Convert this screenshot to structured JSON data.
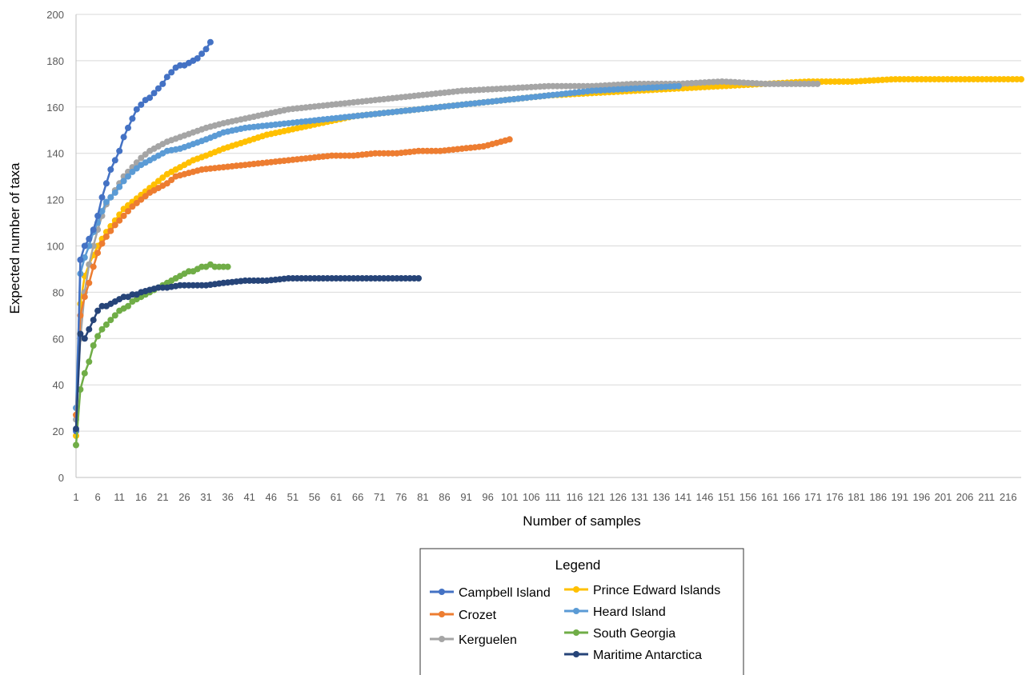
{
  "chart_data": {
    "type": "line",
    "xlabel": "Number of samples",
    "ylabel": "Expected number of taxa",
    "xlim": [
      1,
      219
    ],
    "ylim": [
      0,
      200
    ],
    "y_ticks": [
      0,
      20,
      40,
      60,
      80,
      100,
      120,
      140,
      160,
      180,
      200
    ],
    "x_tick_start": 1,
    "x_tick_step": 5,
    "x_tick_end": 216,
    "grid": "horizontal",
    "legend": {
      "title": "Legend",
      "placement": "bottom-center",
      "columns": 2
    },
    "series": [
      {
        "name": "Campbell Island",
        "color": "#4472C4",
        "n": 32,
        "points": [
          [
            1,
            20
          ],
          [
            2,
            94
          ],
          [
            3,
            100
          ],
          [
            4,
            103
          ],
          [
            5,
            107
          ],
          [
            6,
            113
          ],
          [
            7,
            121
          ],
          [
            8,
            127
          ],
          [
            9,
            133
          ],
          [
            10,
            137
          ],
          [
            11,
            141
          ],
          [
            12,
            147
          ],
          [
            13,
            151
          ],
          [
            14,
            155
          ],
          [
            15,
            159
          ],
          [
            16,
            161
          ],
          [
            17,
            163
          ],
          [
            18,
            164
          ],
          [
            19,
            166
          ],
          [
            20,
            168
          ],
          [
            21,
            170
          ],
          [
            22,
            173
          ],
          [
            23,
            175
          ],
          [
            24,
            177
          ],
          [
            25,
            178
          ],
          [
            26,
            178
          ],
          [
            27,
            179
          ],
          [
            28,
            180
          ],
          [
            29,
            181
          ],
          [
            30,
            183
          ],
          [
            31,
            185
          ],
          [
            32,
            188
          ]
        ]
      },
      {
        "name": "Crozet",
        "color": "#ED7D31",
        "n": 101,
        "points": [
          [
            1,
            27
          ],
          [
            2,
            70
          ],
          [
            3,
            78
          ],
          [
            4,
            84
          ],
          [
            5,
            91
          ],
          [
            6,
            97
          ],
          [
            7,
            101
          ],
          [
            8,
            104
          ],
          [
            10,
            109
          ],
          [
            12,
            113
          ],
          [
            14,
            117
          ],
          [
            16,
            120
          ],
          [
            18,
            123
          ],
          [
            20,
            125
          ],
          [
            22,
            127
          ],
          [
            24,
            130
          ],
          [
            26,
            131
          ],
          [
            30,
            133
          ],
          [
            35,
            134
          ],
          [
            40,
            135
          ],
          [
            45,
            136
          ],
          [
            50,
            137
          ],
          [
            55,
            138
          ],
          [
            60,
            139
          ],
          [
            65,
            139
          ],
          [
            70,
            140
          ],
          [
            75,
            140
          ],
          [
            80,
            141
          ],
          [
            85,
            141
          ],
          [
            90,
            142
          ],
          [
            95,
            143
          ],
          [
            101,
            146
          ]
        ]
      },
      {
        "name": "Kerguelen",
        "color": "#A5A5A5",
        "n": 172,
        "points": [
          [
            1,
            25
          ],
          [
            2,
            60
          ],
          [
            3,
            80
          ],
          [
            4,
            92
          ],
          [
            5,
            100
          ],
          [
            6,
            107
          ],
          [
            7,
            113
          ],
          [
            8,
            118
          ],
          [
            10,
            124
          ],
          [
            12,
            130
          ],
          [
            14,
            134
          ],
          [
            16,
            138
          ],
          [
            18,
            141
          ],
          [
            20,
            143
          ],
          [
            22,
            145
          ],
          [
            25,
            147
          ],
          [
            28,
            149
          ],
          [
            31,
            151
          ],
          [
            35,
            153
          ],
          [
            40,
            155
          ],
          [
            45,
            157
          ],
          [
            50,
            159
          ],
          [
            55,
            160
          ],
          [
            60,
            161
          ],
          [
            65,
            162
          ],
          [
            70,
            163
          ],
          [
            75,
            164
          ],
          [
            80,
            165
          ],
          [
            90,
            167
          ],
          [
            100,
            168
          ],
          [
            110,
            169
          ],
          [
            120,
            169
          ],
          [
            130,
            170
          ],
          [
            140,
            170
          ],
          [
            150,
            171
          ],
          [
            160,
            170
          ],
          [
            166,
            170
          ],
          [
            172,
            170
          ]
        ]
      },
      {
        "name": "Prince Edward Islands",
        "color": "#FFC000",
        "n": 219,
        "points": [
          [
            1,
            18
          ],
          [
            2,
            75
          ],
          [
            3,
            87
          ],
          [
            4,
            92
          ],
          [
            5,
            96
          ],
          [
            6,
            100
          ],
          [
            8,
            106
          ],
          [
            10,
            111
          ],
          [
            12,
            116
          ],
          [
            14,
            119
          ],
          [
            16,
            122
          ],
          [
            18,
            125
          ],
          [
            20,
            128
          ],
          [
            22,
            131
          ],
          [
            25,
            134
          ],
          [
            28,
            137
          ],
          [
            31,
            139
          ],
          [
            35,
            142
          ],
          [
            40,
            145
          ],
          [
            45,
            148
          ],
          [
            50,
            150
          ],
          [
            55,
            152
          ],
          [
            60,
            154
          ],
          [
            65,
            156
          ],
          [
            70,
            157
          ],
          [
            80,
            159
          ],
          [
            90,
            161
          ],
          [
            100,
            163
          ],
          [
            110,
            165
          ],
          [
            120,
            166
          ],
          [
            130,
            167
          ],
          [
            140,
            168
          ],
          [
            150,
            169
          ],
          [
            160,
            170
          ],
          [
            170,
            171
          ],
          [
            180,
            171
          ],
          [
            190,
            172
          ],
          [
            200,
            172
          ],
          [
            210,
            172
          ],
          [
            219,
            172
          ]
        ]
      },
      {
        "name": "Heard Island",
        "color": "#5B9BD5",
        "n": 140,
        "points": [
          [
            1,
            30
          ],
          [
            2,
            88
          ],
          [
            3,
            95
          ],
          [
            4,
            100
          ],
          [
            5,
            106
          ],
          [
            6,
            110
          ],
          [
            7,
            115
          ],
          [
            8,
            119
          ],
          [
            10,
            123
          ],
          [
            12,
            128
          ],
          [
            14,
            132
          ],
          [
            16,
            135
          ],
          [
            18,
            137
          ],
          [
            20,
            139
          ],
          [
            22,
            141
          ],
          [
            25,
            142
          ],
          [
            28,
            144
          ],
          [
            31,
            146
          ],
          [
            35,
            149
          ],
          [
            40,
            151
          ],
          [
            45,
            152
          ],
          [
            50,
            153
          ],
          [
            55,
            154
          ],
          [
            60,
            155
          ],
          [
            65,
            156
          ],
          [
            70,
            157
          ],
          [
            75,
            158
          ],
          [
            80,
            159
          ],
          [
            90,
            161
          ],
          [
            100,
            163
          ],
          [
            110,
            165
          ],
          [
            120,
            167
          ],
          [
            130,
            168
          ],
          [
            140,
            169
          ]
        ]
      },
      {
        "name": "South Georgia",
        "color": "#70AD47",
        "n": 36,
        "points": [
          [
            1,
            14
          ],
          [
            2,
            38
          ],
          [
            3,
            45
          ],
          [
            4,
            50
          ],
          [
            5,
            57
          ],
          [
            6,
            61
          ],
          [
            7,
            64
          ],
          [
            8,
            66
          ],
          [
            9,
            68
          ],
          [
            10,
            70
          ],
          [
            11,
            72
          ],
          [
            12,
            73
          ],
          [
            13,
            74
          ],
          [
            14,
            76
          ],
          [
            15,
            77
          ],
          [
            16,
            78
          ],
          [
            17,
            79
          ],
          [
            18,
            80
          ],
          [
            19,
            81
          ],
          [
            20,
            82
          ],
          [
            21,
            83
          ],
          [
            22,
            84
          ],
          [
            23,
            85
          ],
          [
            24,
            86
          ],
          [
            25,
            87
          ],
          [
            26,
            88
          ],
          [
            27,
            89
          ],
          [
            28,
            89
          ],
          [
            29,
            90
          ],
          [
            30,
            91
          ],
          [
            31,
            91
          ],
          [
            32,
            92
          ],
          [
            33,
            91
          ],
          [
            34,
            91
          ],
          [
            35,
            91
          ],
          [
            36,
            91
          ]
        ]
      },
      {
        "name": "Maritime Antarctica",
        "color": "#264478",
        "n": 80,
        "points": [
          [
            1,
            21
          ],
          [
            2,
            62
          ],
          [
            3,
            60
          ],
          [
            4,
            64
          ],
          [
            5,
            68
          ],
          [
            6,
            72
          ],
          [
            7,
            74
          ],
          [
            8,
            74
          ],
          [
            9,
            75
          ],
          [
            10,
            76
          ],
          [
            11,
            77
          ],
          [
            12,
            78
          ],
          [
            13,
            78
          ],
          [
            14,
            79
          ],
          [
            15,
            79
          ],
          [
            16,
            80
          ],
          [
            18,
            81
          ],
          [
            20,
            82
          ],
          [
            22,
            82
          ],
          [
            25,
            83
          ],
          [
            28,
            83
          ],
          [
            31,
            83
          ],
          [
            35,
            84
          ],
          [
            40,
            85
          ],
          [
            45,
            85
          ],
          [
            50,
            86
          ],
          [
            55,
            86
          ],
          [
            60,
            86
          ],
          [
            65,
            86
          ],
          [
            70,
            86
          ],
          [
            75,
            86
          ],
          [
            80,
            86
          ]
        ]
      }
    ]
  }
}
